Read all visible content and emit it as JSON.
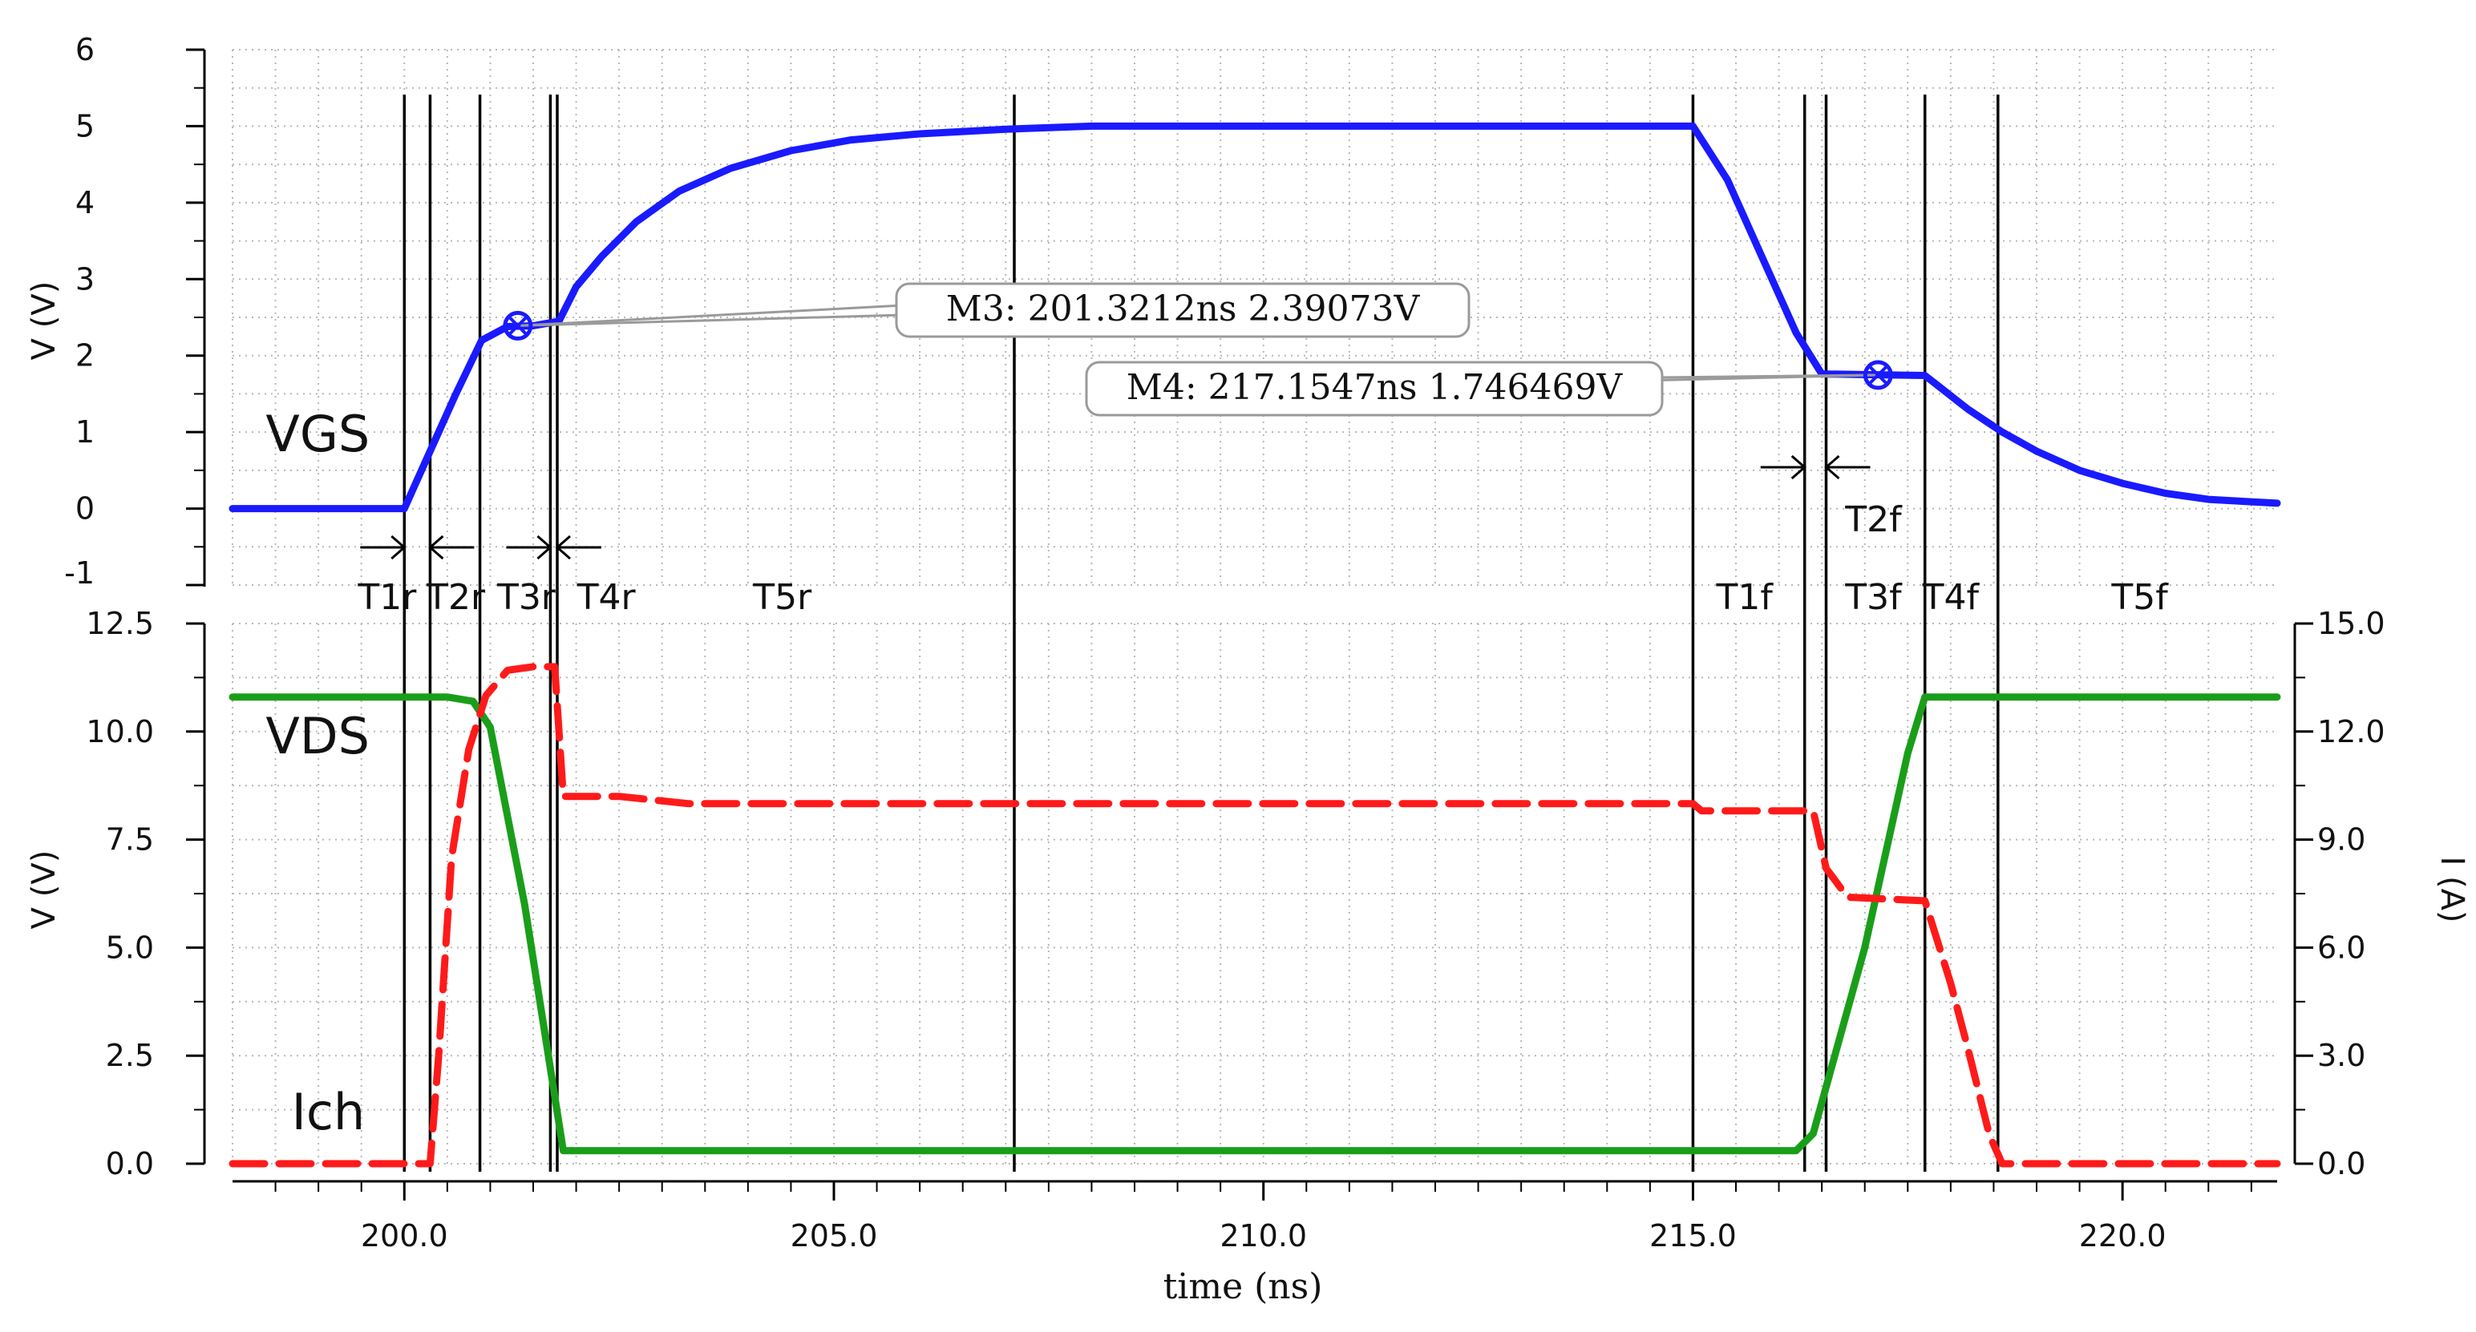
{
  "chart_data": {
    "type": "line",
    "xlabel": "time (ns)",
    "xlim": [
      198.0,
      221.8
    ],
    "x_ticks": [
      "200.0",
      "205.0",
      "210.0",
      "215.0",
      "220.0"
    ],
    "x_tick_values": [
      200,
      205,
      210,
      215,
      220
    ],
    "colors": {
      "vgs": "#1a1aff",
      "vds": "#1a9e1a",
      "ich": "#ff1a1a"
    },
    "top_panel": {
      "ylabel": "V (V)",
      "ylim": [
        -1,
        6
      ],
      "y_ticks": [
        "6",
        "5",
        "4",
        "3",
        "2",
        "1",
        "0",
        "-1"
      ],
      "y_tick_values": [
        6,
        5,
        4,
        3,
        2,
        1,
        0,
        -1
      ],
      "series": [
        {
          "name": "VGS",
          "x": [
            198.0,
            200.0,
            200.1,
            200.3,
            200.6,
            200.9,
            201.2,
            201.5,
            201.8,
            202.0,
            202.3,
            202.7,
            203.2,
            203.8,
            204.5,
            205.2,
            206.0,
            207.0,
            208.0,
            210.0,
            215.0,
            215.4,
            215.8,
            216.2,
            216.5,
            217.15,
            217.7,
            218.2,
            218.6,
            219.0,
            219.5,
            220.0,
            220.5,
            221.0,
            221.8
          ],
          "y": [
            0.0,
            0.0,
            0.25,
            0.75,
            1.5,
            2.2,
            2.38,
            2.39,
            2.45,
            2.9,
            3.3,
            3.75,
            4.15,
            4.45,
            4.68,
            4.82,
            4.9,
            4.96,
            5.0,
            5.0,
            5.0,
            4.3,
            3.3,
            2.3,
            1.76,
            1.75,
            1.74,
            1.3,
            1.0,
            0.75,
            0.5,
            0.33,
            0.2,
            0.12,
            0.07
          ]
        }
      ],
      "markers": [
        {
          "label": "M3: 201.3212ns 2.39073V",
          "x": 201.3212,
          "y": 2.39073
        },
        {
          "label": "M4: 217.1547ns 1.746469V",
          "x": 217.1547,
          "y": 1.746469
        }
      ]
    },
    "bottom_panel": {
      "ylabel_left": "V (V)",
      "ylim_left": [
        0,
        12.5
      ],
      "y_ticks_left": [
        "12.5",
        "10.0",
        "7.5",
        "5.0",
        "2.5",
        "0.0"
      ],
      "y_tick_values_left": [
        12.5,
        10.0,
        7.5,
        5.0,
        2.5,
        0.0
      ],
      "ylabel_right": "I (A)",
      "ylim_right": [
        0,
        15
      ],
      "y_ticks_right": [
        "15.0",
        "12.0",
        "9.0",
        "6.0",
        "3.0",
        "0.0"
      ],
      "y_tick_values_right": [
        15,
        12,
        9,
        6,
        3,
        0
      ],
      "series": [
        {
          "name": "VDS",
          "axis": "left",
          "x": [
            198.0,
            200.0,
            200.5,
            200.8,
            201.0,
            201.4,
            201.85,
            205.0,
            210.0,
            215.0,
            216.2,
            216.4,
            217.0,
            217.5,
            217.7,
            218.0,
            220.0,
            221.8
          ],
          "y": [
            10.8,
            10.8,
            10.8,
            10.7,
            10.1,
            6.0,
            0.3,
            0.3,
            0.3,
            0.3,
            0.3,
            0.7,
            5.0,
            9.5,
            10.8,
            10.8,
            10.8,
            10.8
          ]
        },
        {
          "name": "Ich",
          "axis": "right",
          "x": [
            198.0,
            200.3,
            200.4,
            200.55,
            200.75,
            200.95,
            201.2,
            201.5,
            201.75,
            201.85,
            202.5,
            203.3,
            205.0,
            210.0,
            215.0,
            215.1,
            216.4,
            216.55,
            216.8,
            217.7,
            218.0,
            218.2,
            218.45,
            218.6,
            220.0,
            221.8
          ],
          "y": [
            0.0,
            0.0,
            3.0,
            8.5,
            11.5,
            13.0,
            13.7,
            13.8,
            13.8,
            10.2,
            10.2,
            10.0,
            10.0,
            10.0,
            10.0,
            9.8,
            9.8,
            8.2,
            7.4,
            7.3,
            5.0,
            3.2,
            0.8,
            0.0,
            0.0,
            0.0
          ]
        }
      ]
    },
    "cursor_lines_x": [
      200.0,
      200.3,
      200.88,
      201.7,
      201.78,
      207.1,
      215.0,
      216.3,
      216.55,
      217.7,
      218.55
    ],
    "phase_labels": [
      {
        "text": "T1r",
        "x": 199.8
      },
      {
        "text": "T2r",
        "x": 200.6
      },
      {
        "text": "T3r",
        "x": 201.42
      },
      {
        "text": "T4r",
        "x": 202.35
      },
      {
        "text": "T5r",
        "x": 204.4
      },
      {
        "text": "T1f",
        "x": 215.6
      },
      {
        "text": "T3f",
        "x": 217.1
      },
      {
        "text": "T4f",
        "x": 218.0
      },
      {
        "text": "T5f",
        "x": 220.2
      }
    ],
    "t2f_label": {
      "text": "T2f",
      "x": 217.1
    },
    "annotations": [
      {
        "text": "VGS",
        "x": 198.2,
        "panel": "top",
        "y": 0.75
      },
      {
        "text": "VDS",
        "x": 198.2,
        "panel": "bottom",
        "y": 9.5
      },
      {
        "text": "Ich",
        "x": 198.5,
        "panel": "bottom",
        "y": 0.8
      }
    ],
    "grid": true
  }
}
